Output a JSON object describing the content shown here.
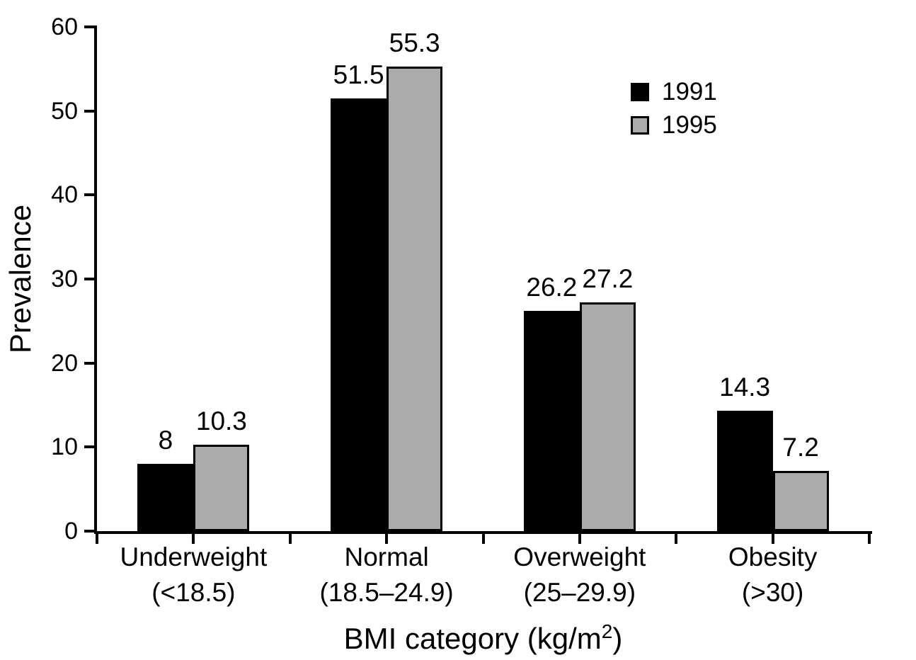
{
  "chart_data": {
    "type": "bar",
    "title": "",
    "ylabel": "Prevalence",
    "xlabel_prefix": "BMI category (kg/m",
    "xlabel_sup": "2",
    "xlabel_suffix": ")",
    "ylim": [
      0,
      60
    ],
    "yticks": [
      0,
      10,
      20,
      30,
      40,
      50,
      60
    ],
    "grid": false,
    "legend_position": "upper-right",
    "categories": [
      "Underweight",
      "Normal",
      "Overweight",
      "Obesity"
    ],
    "category_sublabels": [
      "(<18.5)",
      "(18.5–24.9)",
      "(25–29.9)",
      "(>30)"
    ],
    "series": [
      {
        "name": "1991",
        "color": "#000000",
        "values": [
          8,
          51.5,
          26.2,
          14.3
        ],
        "value_labels": [
          "8",
          "51.5",
          "26.2",
          "14.3"
        ]
      },
      {
        "name": "1995",
        "color": "#ababab",
        "values": [
          10.3,
          55.3,
          27.2,
          7.2
        ],
        "value_labels": [
          "10.3",
          "55.3",
          "27.2",
          "7.2"
        ]
      }
    ]
  }
}
